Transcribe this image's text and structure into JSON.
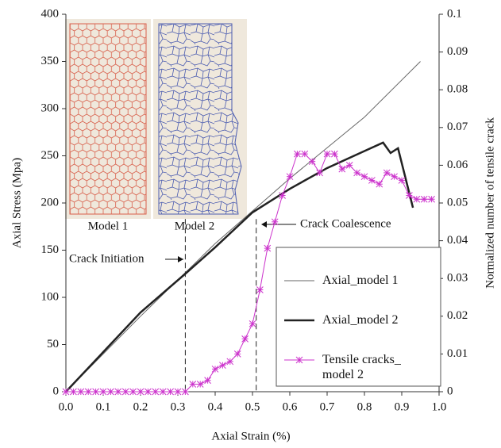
{
  "chart_data": {
    "type": "line",
    "xlabel": "Axial Strain (%)",
    "ylabel": "Axial Stress (Mpa)",
    "y2label": "Normalized number of tensile crack",
    "xlim": [
      0,
      1
    ],
    "xticks": [
      {
        "value": 0,
        "label": "0.0"
      },
      0.1,
      0.2,
      0.3,
      0.4,
      0.5,
      0.6,
      0.7,
      0.8,
      0.9,
      {
        "value": 1,
        "label": "1.0"
      }
    ],
    "ylim": [
      0,
      400
    ],
    "yticks": [
      0,
      50,
      100,
      150,
      200,
      250,
      300,
      350,
      400
    ],
    "y2lim": [
      0,
      0.1
    ],
    "y2ticks": [
      0,
      0.01,
      0.02,
      0.03,
      0.04,
      0.05,
      0.06,
      0.07,
      0.08,
      0.09,
      0.1
    ],
    "vlines": [
      0.32,
      0.51
    ],
    "annotations": [
      "Crack Initiation",
      "Crack Coalescence"
    ],
    "inset_labels": [
      "Model 1",
      "Model 2"
    ],
    "legend": "lower right",
    "series": [
      {
        "name": "Axial_model 1",
        "color": "#666666",
        "width": 1,
        "x": [
          0,
          0.2,
          0.4,
          0.6,
          0.8,
          0.95
        ],
        "values": [
          0,
          80,
          157,
          226,
          291,
          350
        ]
      },
      {
        "name": "Axial_model 2",
        "color": "#222222",
        "width": 2.5,
        "x": [
          0,
          0.1,
          0.2,
          0.32,
          0.4,
          0.5,
          0.6,
          0.7,
          0.8,
          0.85,
          0.87,
          0.89,
          0.93
        ],
        "values": [
          0,
          42,
          84,
          125,
          153,
          190,
          215,
          237,
          255,
          264,
          253,
          258,
          195
        ]
      },
      {
        "name": "Tensile cracks_ model 2",
        "color": "#cc33cc",
        "width": 1,
        "axis": "y2",
        "marker": "asterisk",
        "x": [
          0,
          0.02,
          0.04,
          0.06,
          0.08,
          0.1,
          0.12,
          0.14,
          0.16,
          0.18,
          0.2,
          0.22,
          0.24,
          0.26,
          0.28,
          0.3,
          0.32,
          0.34,
          0.36,
          0.38,
          0.4,
          0.42,
          0.44,
          0.46,
          0.48,
          0.5,
          0.52,
          0.54,
          0.56,
          0.58,
          0.6,
          0.62,
          0.64,
          0.66,
          0.68,
          0.7,
          0.72,
          0.74,
          0.76,
          0.78,
          0.8,
          0.82,
          0.84,
          0.86,
          0.88,
          0.9,
          0.92,
          0.94,
          0.96,
          0.98
        ],
        "values": [
          0,
          0,
          0,
          0,
          0,
          0,
          0,
          0,
          0,
          0,
          0,
          0,
          0,
          0,
          0,
          0,
          0,
          0.002,
          0.002,
          0.003,
          0.006,
          0.007,
          0.008,
          0.01,
          0.014,
          0.018,
          0.027,
          0.038,
          0.045,
          0.052,
          0.057,
          0.063,
          0.063,
          0.061,
          0.058,
          0.063,
          0.063,
          0.059,
          0.06,
          0.058,
          0.057,
          0.056,
          0.055,
          0.058,
          0.057,
          0.056,
          0.052,
          0.051,
          0.051,
          0.051
        ]
      }
    ]
  }
}
